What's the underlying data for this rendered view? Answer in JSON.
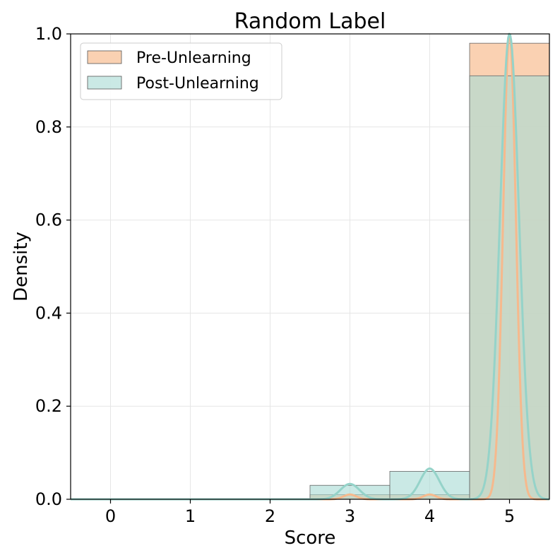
{
  "chart_data": {
    "type": "histogram",
    "title": "Random Label",
    "xlabel": "Score",
    "ylabel": "Density",
    "xlim": [
      -0.5,
      5.5
    ],
    "ylim": [
      0,
      1.0
    ],
    "x_ticks": [
      0,
      1,
      2,
      3,
      4,
      5
    ],
    "x_tick_labels": [
      "0",
      "1",
      "2",
      "3",
      "4",
      "5"
    ],
    "y_ticks": [
      0.0,
      0.2,
      0.4,
      0.6,
      0.8,
      1.0
    ],
    "y_tick_labels": [
      "0.0",
      "0.2",
      "0.4",
      "0.6",
      "0.8",
      "1.0"
    ],
    "grid": true,
    "legend_position": "top-left",
    "bins": [
      [
        -0.5,
        0.5
      ],
      [
        0.5,
        1.5
      ],
      [
        1.5,
        2.5
      ],
      [
        2.5,
        3.5
      ],
      [
        3.5,
        4.5
      ],
      [
        4.5,
        5.5
      ]
    ],
    "series": [
      {
        "name": "Pre-Unlearning",
        "color": "#f9c9a5",
        "line_color": "#f6b98d",
        "values": [
          0,
          0,
          0,
          0.01,
          0.01,
          0.98
        ],
        "kde_bandwidth": 0.08
      },
      {
        "name": "Post-Unlearning",
        "color": "#a9dcd5",
        "line_color": "#95d3c9",
        "values": [
          0,
          0,
          0,
          0.03,
          0.06,
          0.91
        ],
        "kde_bandwidth": 0.12
      }
    ]
  }
}
